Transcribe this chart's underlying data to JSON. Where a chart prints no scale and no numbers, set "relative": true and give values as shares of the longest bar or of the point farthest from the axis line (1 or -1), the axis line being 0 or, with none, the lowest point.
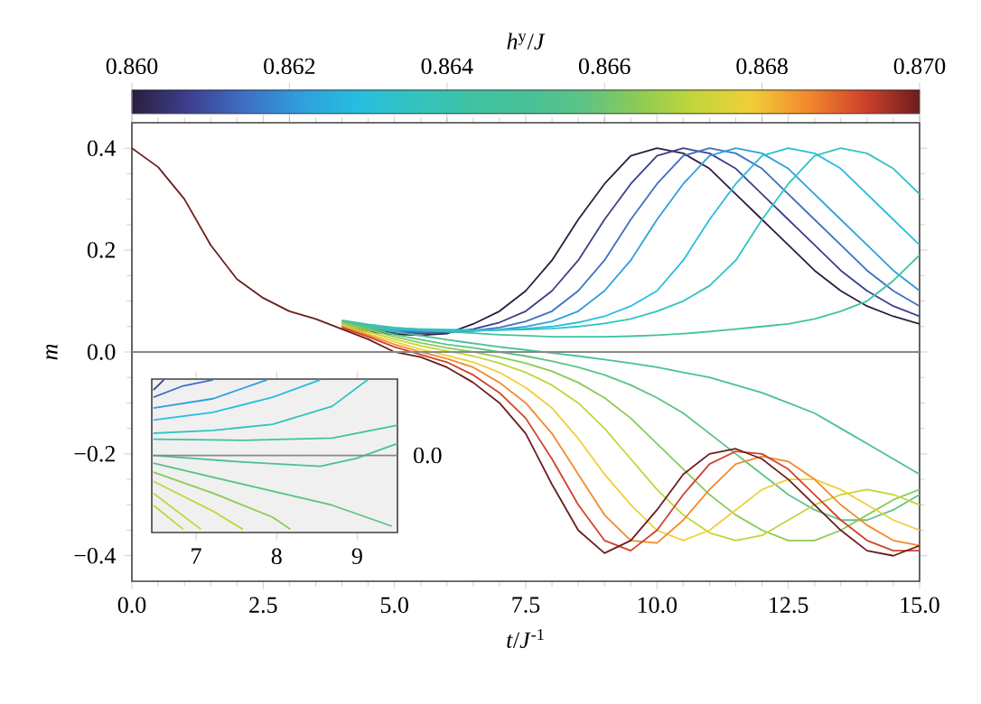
{
  "chart_data": [
    {
      "type": "line",
      "xlabel": "*t*/*J*$^{-1}$",
      "ylabel": "m",
      "clabel": "*h*$^{y}$/*J*",
      "x": [
        0,
        0.5,
        1,
        1.5,
        2,
        2.5,
        3,
        3.5,
        4,
        4.5,
        5,
        5.5,
        6,
        6.5,
        7,
        7.5,
        8,
        8.5,
        9,
        9.5,
        10,
        10.5,
        11,
        11.5,
        12,
        12.5,
        13,
        13.5,
        14,
        14.5,
        15
      ],
      "xlim": [
        0,
        15
      ],
      "ylim": [
        -0.45,
        0.45
      ],
      "xticks": [
        {
          "value": 0,
          "label": "0.0"
        },
        {
          "value": 2.5,
          "label": "2.5"
        },
        {
          "value": 5,
          "label": "5.0"
        },
        {
          "value": 7.5,
          "label": "7.5"
        },
        {
          "value": 10,
          "label": "10.0"
        },
        {
          "value": 12.5,
          "label": "12.5"
        },
        {
          "value": 15,
          "label": "15.0"
        }
      ],
      "yticks": [
        {
          "value": -0.4,
          "label": "−0.4"
        },
        {
          "value": -0.2,
          "label": "−0.2"
        },
        {
          "value": 0,
          "label": "0.0"
        },
        {
          "value": 0.2,
          "label": "0.2"
        },
        {
          "value": 0.4,
          "label": "0.4"
        }
      ],
      "clim": [
        0.86,
        0.87
      ],
      "cticks": [
        {
          "value": 0.86,
          "label": "0.860"
        },
        {
          "value": 0.862,
          "label": "0.862"
        },
        {
          "value": 0.864,
          "label": "0.864"
        },
        {
          "value": 0.866,
          "label": "0.866"
        },
        {
          "value": 0.868,
          "label": "0.868"
        },
        {
          "value": 0.87,
          "label": "0.870"
        }
      ],
      "ref_lines": [
        {
          "axis": "y",
          "value": 0,
          "color": "#888888"
        }
      ],
      "series": [
        {
          "color": "#2d1e3e",
          "values": [
            null,
            null,
            null,
            null,
            null,
            null,
            null,
            null,
            0.05,
            0.04,
            0.035,
            0.033,
            0.036,
            0.055,
            0.08,
            0.12,
            0.18,
            0.26,
            0.33,
            0.385,
            0.4,
            0.39,
            0.36,
            0.31,
            0.26,
            0.21,
            0.16,
            0.12,
            0.09,
            0.07,
            0.055
          ]
        },
        {
          "color": "#3c3f8e",
          "values": [
            null,
            null,
            null,
            null,
            null,
            null,
            null,
            null,
            0.052,
            0.043,
            0.038,
            0.037,
            0.038,
            0.045,
            0.058,
            0.08,
            0.12,
            0.18,
            0.26,
            0.33,
            0.385,
            0.4,
            0.39,
            0.36,
            0.31,
            0.26,
            0.21,
            0.16,
            0.12,
            0.09,
            0.07
          ]
        },
        {
          "color": "#3f6fc4",
          "values": [
            null,
            null,
            null,
            null,
            null,
            null,
            null,
            null,
            0.054,
            0.046,
            0.041,
            0.039,
            0.039,
            0.042,
            0.048,
            0.06,
            0.08,
            0.12,
            0.18,
            0.26,
            0.33,
            0.385,
            0.4,
            0.39,
            0.36,
            0.31,
            0.26,
            0.21,
            0.16,
            0.12,
            0.09
          ]
        },
        {
          "color": "#2f9fdc",
          "values": [
            null,
            null,
            null,
            null,
            null,
            null,
            null,
            null,
            0.056,
            0.048,
            0.043,
            0.041,
            0.04,
            0.041,
            0.044,
            0.05,
            0.06,
            0.08,
            0.12,
            0.18,
            0.26,
            0.33,
            0.385,
            0.4,
            0.39,
            0.36,
            0.31,
            0.26,
            0.21,
            0.16,
            0.12
          ]
        },
        {
          "color": "#27bde0",
          "values": [
            null,
            null,
            null,
            null,
            null,
            null,
            null,
            null,
            0.058,
            0.05,
            0.045,
            0.043,
            0.042,
            0.042,
            0.043,
            0.046,
            0.05,
            0.058,
            0.07,
            0.09,
            0.12,
            0.18,
            0.26,
            0.33,
            0.385,
            0.4,
            0.39,
            0.36,
            0.31,
            0.26,
            0.21
          ]
        },
        {
          "color": "#32c3c0",
          "values": [
            null,
            null,
            null,
            null,
            null,
            null,
            null,
            null,
            0.06,
            0.052,
            0.047,
            0.045,
            0.044,
            0.043,
            0.043,
            0.044,
            0.046,
            0.05,
            0.056,
            0.065,
            0.08,
            0.1,
            0.13,
            0.18,
            0.26,
            0.33,
            0.385,
            0.4,
            0.39,
            0.36,
            0.31
          ]
        },
        {
          "color": "#3fc2a4",
          "values": [
            null,
            null,
            null,
            null,
            null,
            null,
            null,
            null,
            0.062,
            0.054,
            0.048,
            0.044,
            0.04,
            0.037,
            0.034,
            0.032,
            0.03,
            0.03,
            0.03,
            0.031,
            0.033,
            0.036,
            0.04,
            0.045,
            0.05,
            0.055,
            0.065,
            0.08,
            0.1,
            0.14,
            0.19
          ]
        },
        {
          "color": "#48c198",
          "values": [
            null,
            null,
            null,
            null,
            null,
            null,
            null,
            null,
            0.061,
            0.05,
            0.04,
            0.032,
            0.024,
            0.017,
            0.01,
            0.004,
            -0.002,
            -0.008,
            -0.015,
            -0.022,
            -0.03,
            -0.04,
            -0.05,
            -0.065,
            -0.08,
            -0.1,
            -0.12,
            -0.15,
            -0.18,
            -0.21,
            -0.24
          ]
        },
        {
          "color": "#5cc387",
          "values": [
            null,
            null,
            null,
            null,
            null,
            null,
            null,
            null,
            0.06,
            0.047,
            0.034,
            0.024,
            0.015,
            0.008,
            0.0,
            -0.008,
            -0.018,
            -0.03,
            -0.045,
            -0.065,
            -0.09,
            -0.12,
            -0.16,
            -0.2,
            -0.24,
            -0.28,
            -0.31,
            -0.33,
            -0.33,
            -0.31,
            -0.28
          ]
        },
        {
          "color": "#8ccb54",
          "values": [
            null,
            null,
            null,
            null,
            null,
            null,
            null,
            null,
            0.058,
            0.044,
            0.03,
            0.018,
            0.008,
            0.0,
            -0.01,
            -0.022,
            -0.038,
            -0.06,
            -0.09,
            -0.13,
            -0.18,
            -0.23,
            -0.28,
            -0.32,
            -0.35,
            -0.37,
            -0.37,
            -0.35,
            -0.32,
            -0.29,
            -0.27
          ]
        },
        {
          "color": "#c2d63a",
          "values": [
            null,
            null,
            null,
            null,
            null,
            null,
            null,
            null,
            0.055,
            0.04,
            0.025,
            0.012,
            0.002,
            -0.008,
            -0.022,
            -0.04,
            -0.065,
            -0.1,
            -0.15,
            -0.21,
            -0.27,
            -0.32,
            -0.355,
            -0.37,
            -0.36,
            -0.33,
            -0.3,
            -0.28,
            -0.27,
            -0.28,
            -0.3
          ]
        },
        {
          "color": "#f0cf3a",
          "values": [
            null,
            null,
            null,
            null,
            null,
            null,
            null,
            null,
            0.052,
            0.036,
            0.02,
            0.005,
            -0.007,
            -0.02,
            -0.04,
            -0.07,
            -0.11,
            -0.17,
            -0.24,
            -0.3,
            -0.35,
            -0.37,
            -0.35,
            -0.31,
            -0.27,
            -0.25,
            -0.25,
            -0.27,
            -0.3,
            -0.33,
            -0.35
          ]
        },
        {
          "color": "#f28a2c",
          "values": [
            null,
            null,
            null,
            null,
            null,
            null,
            null,
            null,
            0.05,
            0.033,
            0.015,
            0.0,
            -0.013,
            -0.03,
            -0.06,
            -0.1,
            -0.16,
            -0.24,
            -0.32,
            -0.37,
            -0.375,
            -0.33,
            -0.27,
            -0.22,
            -0.205,
            -0.215,
            -0.25,
            -0.3,
            -0.34,
            -0.37,
            -0.38
          ]
        },
        {
          "color": "#d0432b",
          "values": [
            null,
            null,
            null,
            null,
            null,
            null,
            null,
            null,
            0.048,
            0.03,
            0.01,
            -0.005,
            -0.02,
            -0.045,
            -0.08,
            -0.13,
            -0.21,
            -0.3,
            -0.37,
            -0.39,
            -0.35,
            -0.28,
            -0.22,
            -0.195,
            -0.2,
            -0.23,
            -0.28,
            -0.33,
            -0.37,
            -0.39,
            -0.39
          ]
        },
        {
          "color": "#6e1d1d",
          "values": [
            0.4,
            0.363,
            0.3,
            0.21,
            0.143,
            0.106,
            0.08,
            0.065,
            0.045,
            0.025,
            0.0,
            -0.01,
            -0.03,
            -0.06,
            -0.1,
            -0.16,
            -0.26,
            -0.35,
            -0.395,
            -0.37,
            -0.31,
            -0.24,
            -0.2,
            -0.19,
            -0.21,
            -0.25,
            -0.3,
            -0.35,
            -0.39,
            -0.4,
            -0.38
          ]
        }
      ]
    },
    {
      "type": "line",
      "relative": true,
      "xlim": [
        6.45,
        9.5
      ],
      "xticks": [
        7,
        8,
        9
      ],
      "ref_lines": [
        {
          "axis": "y",
          "value": 0,
          "label": "0.0",
          "color": "#888888"
        }
      ],
      "series": [
        {
          "color": "#3c3f8e",
          "x": [
            6.47,
            6.6
          ],
          "values": [
            0.864,
            1.0
          ]
        },
        {
          "color": "#3f6fc4",
          "x": [
            6.47,
            6.84,
            7.21
          ],
          "values": [
            0.769,
            0.92,
            1.0
          ]
        },
        {
          "color": "#2f9fdc",
          "x": [
            6.47,
            7.21,
            7.88
          ],
          "values": [
            0.626,
            0.75,
            1.0
          ]
        },
        {
          "color": "#27bde0",
          "x": [
            6.47,
            7.21,
            7.95,
            8.54
          ],
          "values": [
            0.467,
            0.57,
            0.77,
            1.0
          ]
        },
        {
          "color": "#32c3c0",
          "x": [
            6.47,
            7.21,
            7.95,
            8.69,
            9.13
          ],
          "values": [
            0.293,
            0.33,
            0.412,
            0.65,
            1.0
          ]
        },
        {
          "color": "#3fc2a4",
          "x": [
            6.47,
            7.58,
            8.69,
            9.5
          ],
          "values": [
            0.214,
            0.2,
            0.23,
            0.4
          ]
        },
        {
          "color": "#48c198",
          "x": [
            6.47,
            7.58,
            8.54,
            8.99,
            9.5
          ],
          "values": [
            0.0,
            -0.088,
            -0.143,
            -0.04,
            0.158
          ]
        },
        {
          "color": "#5cc387",
          "x": [
            6.47,
            7.58,
            8.69,
            9.43
          ],
          "values": [
            -0.103,
            -0.381,
            -0.659,
            -0.937
          ]
        },
        {
          "color": "#8ccb54",
          "x": [
            6.47,
            7.21,
            7.95,
            8.17
          ],
          "values": [
            -0.222,
            -0.5,
            -0.817,
            -0.977
          ]
        },
        {
          "color": "#c2d63a",
          "x": [
            6.47,
            7.21,
            7.58
          ],
          "values": [
            -0.342,
            -0.738,
            -0.977
          ]
        },
        {
          "color": "#c2d63a",
          "x": [
            6.47,
            7.06
          ],
          "values": [
            -0.5,
            -0.977
          ]
        },
        {
          "color": "#c2d63a",
          "x": [
            6.47,
            6.84
          ],
          "values": [
            -0.659,
            -0.977
          ]
        }
      ]
    }
  ]
}
